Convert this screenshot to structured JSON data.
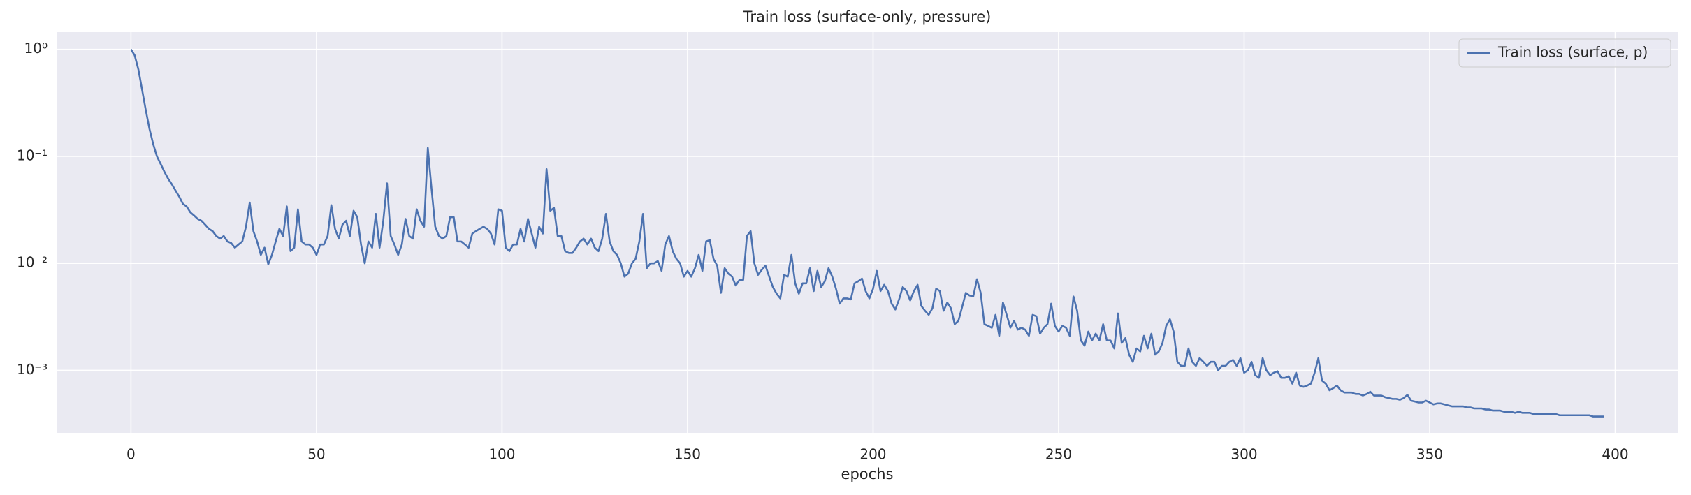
{
  "chart_data": {
    "type": "line",
    "title": "Train loss (surface-only, pressure)",
    "xlabel": "epochs",
    "x": [
      0,
      1,
      2,
      3,
      4,
      5,
      6,
      7,
      8,
      9,
      10,
      11,
      12,
      13,
      14,
      15,
      16,
      17,
      18,
      19,
      20,
      21,
      22,
      23,
      24,
      25,
      26,
      27,
      28,
      29,
      30,
      31,
      32,
      33,
      34,
      35,
      36,
      37,
      38,
      39,
      40,
      41,
      42,
      43,
      44,
      45,
      46,
      47,
      48,
      49,
      50,
      51,
      52,
      53,
      54,
      55,
      56,
      57,
      58,
      59,
      60,
      61,
      62,
      63,
      64,
      65,
      66,
      67,
      68,
      69,
      70,
      71,
      72,
      73,
      74,
      75,
      76,
      77,
      78,
      79,
      80,
      81,
      82,
      83,
      84,
      85,
      86,
      87,
      88,
      89,
      90,
      91,
      92,
      93,
      94,
      95,
      96,
      97,
      98,
      99,
      100,
      101,
      102,
      103,
      104,
      105,
      106,
      107,
      108,
      109,
      110,
      111,
      112,
      113,
      114,
      115,
      116,
      117,
      118,
      119,
      120,
      121,
      122,
      123,
      124,
      125,
      126,
      127,
      128,
      129,
      130,
      131,
      132,
      133,
      134,
      135,
      136,
      137,
      138,
      139,
      140,
      141,
      142,
      143,
      144,
      145,
      146,
      147,
      148,
      149,
      150,
      151,
      152,
      153,
      154,
      155,
      156,
      157,
      158,
      159,
      160,
      161,
      162,
      163,
      164,
      165,
      166,
      167,
      168,
      169,
      170,
      171,
      172,
      173,
      174,
      175,
      176,
      177,
      178,
      179,
      180,
      181,
      182,
      183,
      184,
      185,
      186,
      187,
      188,
      189,
      190,
      191,
      192,
      193,
      194,
      195,
      196,
      197,
      198,
      199,
      200,
      201,
      202,
      203,
      204,
      205,
      206,
      207,
      208,
      209,
      210,
      211,
      212,
      213,
      214,
      215,
      216,
      217,
      218,
      219,
      220,
      221,
      222,
      223,
      224,
      225,
      226,
      227,
      228,
      229,
      230,
      231,
      232,
      233,
      234,
      235,
      236,
      237,
      238,
      239,
      240,
      241,
      242,
      243,
      244,
      245,
      246,
      247,
      248,
      249,
      250,
      251,
      252,
      253,
      254,
      255,
      256,
      257,
      258,
      259,
      260,
      261,
      262,
      263,
      264,
      265,
      266,
      267,
      268,
      269,
      270,
      271,
      272,
      273,
      274,
      275,
      276,
      277,
      278,
      279,
      280,
      281,
      282,
      283,
      284,
      285,
      286,
      287,
      288,
      289,
      290,
      291,
      292,
      293,
      294,
      295,
      296,
      297,
      298,
      299,
      300,
      301,
      302,
      303,
      304,
      305,
      306,
      307,
      308,
      309,
      310,
      311,
      312,
      313,
      314,
      315,
      316,
      317,
      318,
      319,
      320,
      321,
      322,
      323,
      324,
      325,
      326,
      327,
      328,
      329,
      330,
      331,
      332,
      333,
      334,
      335,
      336,
      337,
      338,
      339,
      340,
      341,
      342,
      343,
      344,
      345,
      346,
      347,
      348,
      349,
      350,
      351,
      352,
      353,
      354,
      355,
      356,
      357,
      358,
      359,
      360,
      361,
      362,
      363,
      364,
      365,
      366,
      367,
      368,
      369,
      370,
      371,
      372,
      373,
      374,
      375,
      376,
      377,
      378,
      379,
      380,
      381,
      382,
      383,
      384,
      385,
      386,
      387,
      388,
      389,
      390,
      391,
      392,
      393,
      394,
      395,
      396,
      397
    ],
    "series": [
      {
        "name": "Train loss (surface, p)",
        "color": "#4c72b0",
        "values": [
          1.0,
          0.88,
          0.65,
          0.42,
          0.27,
          0.18,
          0.13,
          0.1,
          0.085,
          0.072,
          0.062,
          0.055,
          0.048,
          0.042,
          0.036,
          0.034,
          0.03,
          0.028,
          0.026,
          0.025,
          0.023,
          0.021,
          0.02,
          0.018,
          0.017,
          0.018,
          0.016,
          0.0155,
          0.014,
          0.015,
          0.016,
          0.022,
          0.037,
          0.02,
          0.016,
          0.012,
          0.014,
          0.0098,
          0.012,
          0.016,
          0.021,
          0.018,
          0.034,
          0.013,
          0.014,
          0.032,
          0.016,
          0.015,
          0.015,
          0.014,
          0.012,
          0.015,
          0.015,
          0.018,
          0.035,
          0.021,
          0.017,
          0.023,
          0.025,
          0.018,
          0.031,
          0.027,
          0.015,
          0.01,
          0.016,
          0.014,
          0.029,
          0.014,
          0.025,
          0.056,
          0.018,
          0.015,
          0.012,
          0.015,
          0.026,
          0.018,
          0.017,
          0.032,
          0.025,
          0.022,
          0.12,
          0.05,
          0.022,
          0.018,
          0.017,
          0.018,
          0.027,
          0.027,
          0.016,
          0.016,
          0.015,
          0.014,
          0.019,
          0.02,
          0.021,
          0.022,
          0.021,
          0.019,
          0.015,
          0.032,
          0.031,
          0.014,
          0.013,
          0.015,
          0.015,
          0.021,
          0.016,
          0.026,
          0.019,
          0.014,
          0.022,
          0.019,
          0.076,
          0.031,
          0.033,
          0.018,
          0.018,
          0.013,
          0.0125,
          0.0125,
          0.014,
          0.016,
          0.017,
          0.015,
          0.017,
          0.014,
          0.013,
          0.017,
          0.029,
          0.016,
          0.013,
          0.012,
          0.01,
          0.0075,
          0.008,
          0.01,
          0.011,
          0.016,
          0.029,
          0.009,
          0.01,
          0.01,
          0.0105,
          0.0085,
          0.015,
          0.018,
          0.013,
          0.011,
          0.01,
          0.0075,
          0.0085,
          0.0075,
          0.009,
          0.012,
          0.0085,
          0.016,
          0.0165,
          0.011,
          0.0095,
          0.0053,
          0.009,
          0.008,
          0.0075,
          0.0062,
          0.007,
          0.007,
          0.018,
          0.02,
          0.01,
          0.0078,
          0.0087,
          0.0095,
          0.0075,
          0.006,
          0.0052,
          0.0047,
          0.0078,
          0.0075,
          0.012,
          0.0065,
          0.0052,
          0.0065,
          0.0065,
          0.009,
          0.0055,
          0.0085,
          0.006,
          0.0068,
          0.009,
          0.0075,
          0.0058,
          0.0042,
          0.0047,
          0.0047,
          0.0046,
          0.0065,
          0.0068,
          0.0072,
          0.0055,
          0.0047,
          0.0058,
          0.0085,
          0.0055,
          0.0063,
          0.0055,
          0.0042,
          0.0037,
          0.0046,
          0.006,
          0.0055,
          0.0045,
          0.0055,
          0.0063,
          0.004,
          0.0036,
          0.0033,
          0.0038,
          0.0058,
          0.0055,
          0.0036,
          0.0043,
          0.0038,
          0.0027,
          0.0029,
          0.0039,
          0.0053,
          0.005,
          0.0049,
          0.0071,
          0.0053,
          0.0027,
          0.0026,
          0.0025,
          0.0033,
          0.0021,
          0.0043,
          0.0033,
          0.0025,
          0.0029,
          0.0024,
          0.0025,
          0.0024,
          0.0021,
          0.0033,
          0.0032,
          0.0022,
          0.0025,
          0.0027,
          0.0042,
          0.0026,
          0.0023,
          0.0026,
          0.0025,
          0.0021,
          0.0049,
          0.0036,
          0.0019,
          0.0017,
          0.0023,
          0.0019,
          0.0022,
          0.0019,
          0.0027,
          0.0019,
          0.0019,
          0.0016,
          0.0034,
          0.0018,
          0.002,
          0.0014,
          0.0012,
          0.0016,
          0.0015,
          0.0021,
          0.0016,
          0.0022,
          0.0014,
          0.0015,
          0.0018,
          0.0026,
          0.003,
          0.0023,
          0.0012,
          0.0011,
          0.0011,
          0.0016,
          0.0012,
          0.0011,
          0.0013,
          0.0012,
          0.0011,
          0.0012,
          0.0012,
          0.001,
          0.0011,
          0.0011,
          0.0012,
          0.00125,
          0.0011,
          0.0013,
          0.00095,
          0.001,
          0.0012,
          0.0009,
          0.00085,
          0.0013,
          0.001,
          0.0009,
          0.00095,
          0.00098,
          0.00085,
          0.00085,
          0.00088,
          0.00075,
          0.00095,
          0.00072,
          0.0007,
          0.00072,
          0.00075,
          0.00095,
          0.0013,
          0.0008,
          0.00075,
          0.00065,
          0.00068,
          0.00072,
          0.00065,
          0.00062,
          0.00062,
          0.00062,
          0.0006,
          0.0006,
          0.00058,
          0.0006,
          0.00063,
          0.00058,
          0.00058,
          0.00058,
          0.00056,
          0.00055,
          0.00054,
          0.00054,
          0.00053,
          0.00055,
          0.00059,
          0.00052,
          0.00051,
          0.0005,
          0.0005,
          0.00052,
          0.0005,
          0.00048,
          0.00049,
          0.00049,
          0.00048,
          0.00047,
          0.00046,
          0.00046,
          0.00046,
          0.00046,
          0.00045,
          0.00045,
          0.00044,
          0.00044,
          0.00044,
          0.00043,
          0.00043,
          0.00042,
          0.00042,
          0.00042,
          0.00041,
          0.00041,
          0.00041,
          0.0004,
          0.00041,
          0.0004,
          0.0004,
          0.0004,
          0.00039,
          0.00039,
          0.00039,
          0.00039,
          0.00039,
          0.00039,
          0.00039,
          0.00038,
          0.00038,
          0.00038,
          0.00038,
          0.00038,
          0.00038,
          0.00038,
          0.00038,
          0.00038,
          0.00037,
          0.00037,
          0.00037,
          0.00037
        ]
      }
    ],
    "xlim": [
      -19.85,
      416.85
    ],
    "xticks": [
      0,
      50,
      100,
      150,
      200,
      250,
      300,
      350,
      400
    ],
    "ylim": [
      0.00026,
      1.45
    ],
    "log_y": true,
    "yticks": [
      {
        "value": 1,
        "label": "10⁰"
      },
      {
        "value": 0.1,
        "label": "10⁻¹"
      },
      {
        "value": 0.01,
        "label": "10⁻²"
      },
      {
        "value": 0.001,
        "label": "10⁻³"
      }
    ],
    "grid": true,
    "legend": "upper right"
  }
}
